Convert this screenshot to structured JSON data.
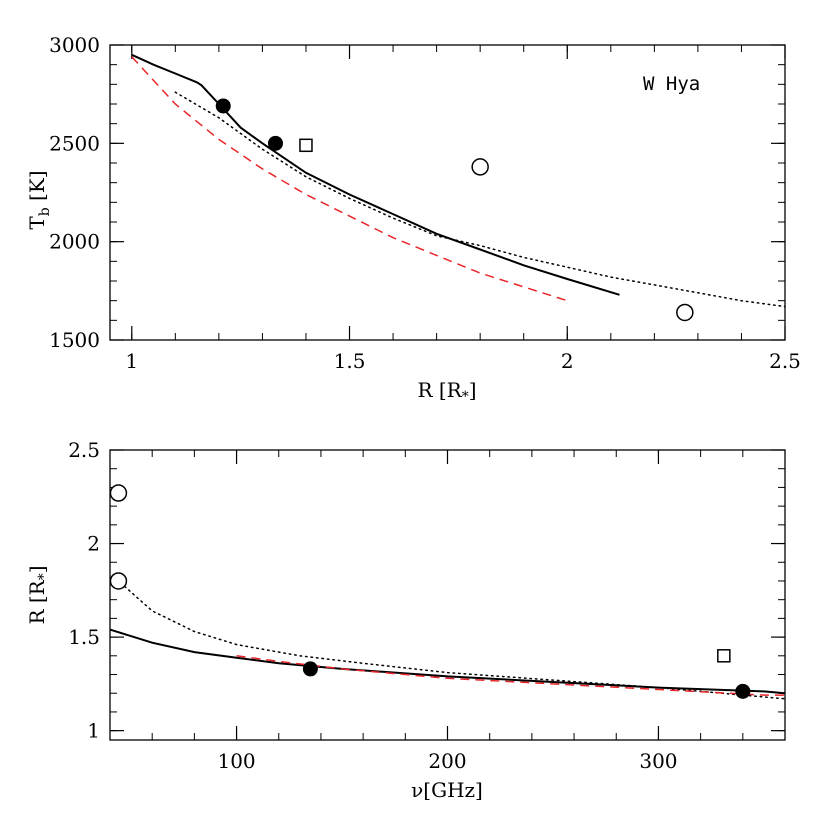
{
  "chart_data": [
    {
      "type": "line",
      "title": "",
      "xlabel": "R [R",
      "xlabel_sub": "*",
      "xlabel_close": "]",
      "ylabel": "T",
      "ylabel_sub": "b",
      "ylabel_unit": " [K]",
      "xlim": [
        0.95,
        2.5
      ],
      "ylim": [
        1500,
        3000
      ],
      "xticks": [
        1,
        1.5,
        2,
        2.5
      ],
      "xtick_labels": [
        "1",
        "1.5",
        "2",
        "2.5"
      ],
      "yticks": [
        1500,
        2000,
        2500,
        3000
      ],
      "ytick_labels": [
        "1500",
        "2000",
        "2500",
        "3000"
      ],
      "x_minor_step": 0.1,
      "y_minor_step": 100,
      "annotation": "W Hya",
      "series": [
        {
          "style": "solid",
          "color": "#000000",
          "x": [
            1.0,
            1.05,
            1.1,
            1.15,
            1.16,
            1.2,
            1.25,
            1.3,
            1.4,
            1.5,
            1.6,
            1.7,
            1.8,
            1.9,
            2.0,
            2.12
          ],
          "y": [
            2950,
            2900,
            2855,
            2810,
            2795,
            2700,
            2580,
            2500,
            2350,
            2240,
            2140,
            2040,
            1960,
            1880,
            1810,
            1730
          ]
        },
        {
          "style": "dotted",
          "color": "#000000",
          "x": [
            1.1,
            1.2,
            1.3,
            1.4,
            1.5,
            1.6,
            1.7,
            1.8,
            1.9,
            2.0,
            2.1,
            2.2,
            2.3,
            2.4,
            2.5
          ],
          "y": [
            2760,
            2630,
            2470,
            2330,
            2220,
            2120,
            2030,
            1980,
            1920,
            1870,
            1820,
            1780,
            1740,
            1700,
            1670
          ]
        },
        {
          "style": "dashed",
          "color": "#e8262a",
          "x": [
            1.0,
            1.1,
            1.2,
            1.3,
            1.4,
            1.5,
            1.6,
            1.7,
            1.8,
            1.9,
            2.0
          ],
          "y": [
            2940,
            2700,
            2520,
            2370,
            2240,
            2130,
            2020,
            1930,
            1840,
            1770,
            1700
          ]
        }
      ],
      "points": [
        {
          "marker": "filled-circle",
          "x": 1.21,
          "y": 2690
        },
        {
          "marker": "filled-circle",
          "x": 1.33,
          "y": 2500
        },
        {
          "marker": "open-square",
          "x": 1.4,
          "y": 2490
        },
        {
          "marker": "open-circle",
          "x": 1.8,
          "y": 2380
        },
        {
          "marker": "open-circle",
          "x": 2.27,
          "y": 1640
        }
      ]
    },
    {
      "type": "line",
      "title": "",
      "xlabel": "ν[GHz]",
      "ylabel": "R [R",
      "ylabel_sub": "*",
      "ylabel_close": "]",
      "xlim": [
        40,
        360
      ],
      "ylim": [
        0.95,
        2.5
      ],
      "xticks": [
        100,
        200,
        300
      ],
      "xtick_labels": [
        "100",
        "200",
        "300"
      ],
      "yticks": [
        1,
        1.5,
        2,
        2.5
      ],
      "ytick_labels": [
        "1",
        "1.5",
        "2",
        "2.5"
      ],
      "x_minor_step": 20,
      "y_minor_step": 0.1,
      "series": [
        {
          "style": "solid",
          "color": "#000000",
          "x": [
            40,
            60,
            80,
            100,
            120,
            150,
            200,
            250,
            300,
            350,
            360
          ],
          "y": [
            1.54,
            1.47,
            1.42,
            1.39,
            1.36,
            1.33,
            1.29,
            1.26,
            1.23,
            1.21,
            1.2
          ]
        },
        {
          "style": "dotted",
          "color": "#000000",
          "x": [
            45,
            60,
            80,
            100,
            130,
            160,
            200,
            250,
            300,
            340,
            360
          ],
          "y": [
            1.79,
            1.64,
            1.53,
            1.46,
            1.4,
            1.36,
            1.31,
            1.27,
            1.23,
            1.19,
            1.17
          ]
        },
        {
          "style": "dashed",
          "color": "#e8262a",
          "x": [
            100,
            120,
            150,
            200,
            250,
            300,
            350,
            360
          ],
          "y": [
            1.4,
            1.37,
            1.33,
            1.28,
            1.25,
            1.22,
            1.19,
            1.19
          ]
        }
      ],
      "points": [
        {
          "marker": "open-circle",
          "x": 44,
          "y": 2.27
        },
        {
          "marker": "open-circle",
          "x": 44,
          "y": 1.8
        },
        {
          "marker": "filled-circle",
          "x": 135,
          "y": 1.33
        },
        {
          "marker": "open-square",
          "x": 331,
          "y": 1.4
        },
        {
          "marker": "filled-circle",
          "x": 340,
          "y": 1.21
        }
      ]
    }
  ]
}
